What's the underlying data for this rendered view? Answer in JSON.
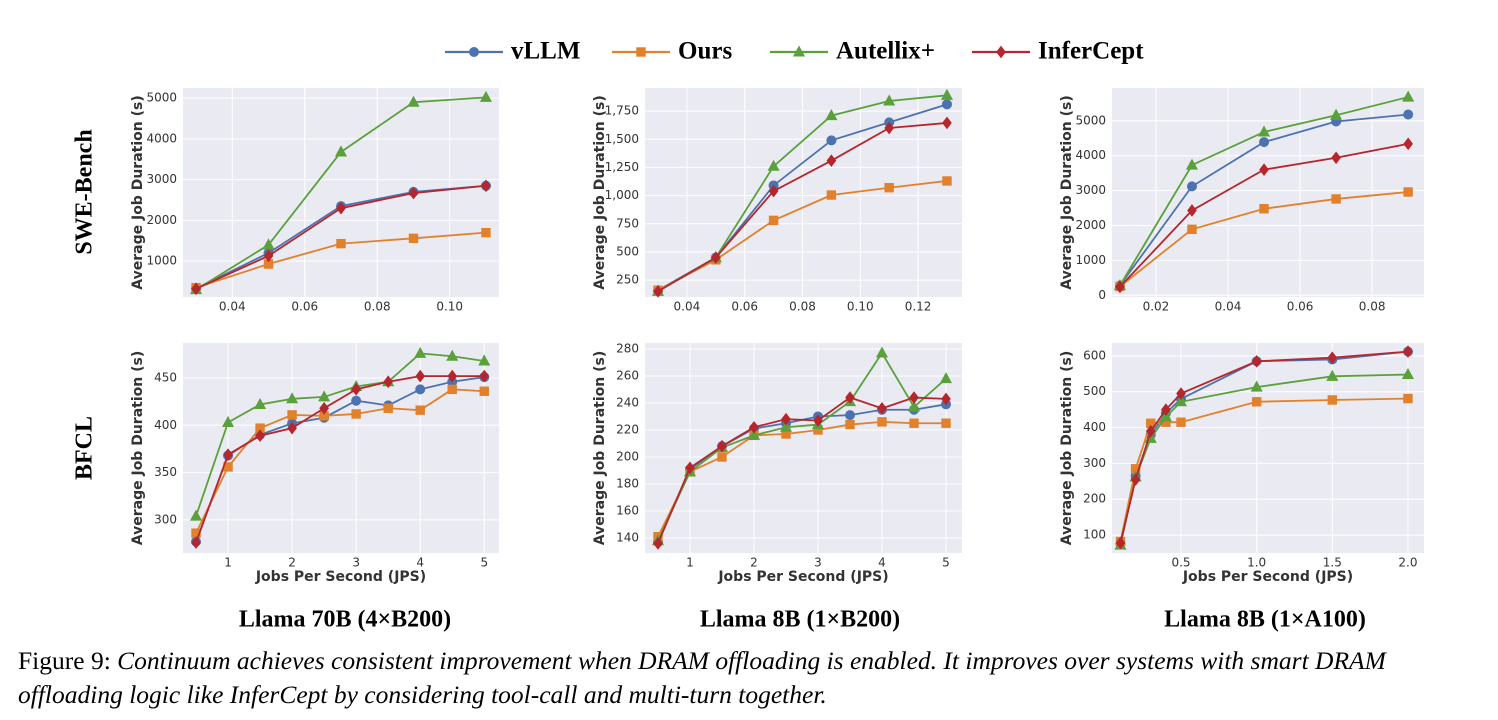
{
  "chart_data": [
    {
      "type": "line",
      "ylabel": "Average Job Duration (s)",
      "x": [
        0.03,
        0.05,
        0.07,
        0.09,
        0.11
      ],
      "xlim": [
        0.0264,
        0.1136
      ],
      "xticks": [
        0.04,
        0.06,
        0.08,
        {
          "value": 0.1,
          "label": "0.10"
        }
      ],
      "ylim": [
        120,
        5250
      ],
      "yticks": [
        1000,
        2000,
        3000,
        4000,
        5000
      ],
      "grid": true,
      "series": [
        {
          "name": "vLLM",
          "color": "#4c72b0",
          "marker": "circle",
          "values": [
            330,
            1200,
            2350,
            2700,
            2850
          ]
        },
        {
          "name": "Ours",
          "color": "#e1812c",
          "marker": "square",
          "values": [
            350,
            930,
            1430,
            1560,
            1700
          ]
        },
        {
          "name": "Autellix+",
          "color": "#5aa13c",
          "marker": "triangle",
          "values": [
            300,
            1400,
            3680,
            4900,
            5020
          ]
        },
        {
          "name": "InferCept",
          "color": "#b5272d",
          "marker": "diamond",
          "values": [
            320,
            1130,
            2300,
            2670,
            2850
          ]
        }
      ]
    },
    {
      "type": "line",
      "ylabel": "Average Job Duration (s)",
      "x": [
        0.03,
        0.05,
        0.07,
        0.09,
        0.11,
        0.13
      ],
      "xlim": [
        0.0255,
        0.1352
      ],
      "xticks": [
        0.04,
        0.06,
        0.08,
        {
          "value": 0.1,
          "label": "0.10"
        },
        0.12
      ],
      "ylim": [
        100,
        1955
      ],
      "yticks": [
        250,
        500,
        750,
        {
          "value": 1000,
          "label": "1,000"
        },
        {
          "value": 1250,
          "label": "1,250"
        },
        {
          "value": 1500,
          "label": "1,500"
        },
        {
          "value": 1750,
          "label": "1,750"
        }
      ],
      "grid": true,
      "series": [
        {
          "name": "vLLM",
          "color": "#4c72b0",
          "marker": "circle",
          "values": [
            160,
            450,
            1090,
            1490,
            1650,
            1810
          ]
        },
        {
          "name": "Ours",
          "color": "#e1812c",
          "marker": "square",
          "values": [
            160,
            430,
            780,
            1005,
            1070,
            1130
          ]
        },
        {
          "name": "Autellix+",
          "color": "#5aa13c",
          "marker": "triangle",
          "values": [
            150,
            450,
            1260,
            1710,
            1840,
            1890
          ]
        },
        {
          "name": "InferCept",
          "color": "#b5272d",
          "marker": "diamond",
          "values": [
            150,
            450,
            1040,
            1310,
            1600,
            1645
          ]
        }
      ]
    },
    {
      "type": "line",
      "ylabel": "Average Job Duration (s)",
      "x": [
        0.01,
        0.03,
        0.05,
        0.07,
        0.09
      ],
      "xlim": [
        0.0078,
        0.0944
      ],
      "xticks": [
        0.02,
        0.04,
        0.06,
        0.08
      ],
      "ylim": [
        -50,
        5940
      ],
      "yticks": [
        0,
        1000,
        2000,
        3000,
        4000,
        5000
      ],
      "grid": true,
      "series": [
        {
          "name": "vLLM",
          "color": "#4c72b0",
          "marker": "circle",
          "values": [
            280,
            3120,
            4390,
            4980,
            5180
          ]
        },
        {
          "name": "Ours",
          "color": "#e1812c",
          "marker": "square",
          "values": [
            250,
            1890,
            2480,
            2760,
            2960
          ]
        },
        {
          "name": "Autellix+",
          "color": "#5aa13c",
          "marker": "triangle",
          "values": [
            280,
            3730,
            4680,
            5160,
            5680
          ]
        },
        {
          "name": "InferCept",
          "color": "#b5272d",
          "marker": "diamond",
          "values": [
            240,
            2430,
            3600,
            3940,
            4340
          ]
        }
      ]
    },
    {
      "type": "line",
      "ylabel": "Average Job Duration (s)",
      "xlabel": "Jobs Per Second (JPS)",
      "x": [
        0.5,
        1,
        1.5,
        2,
        2.5,
        3,
        3.5,
        4,
        4.5,
        5
      ],
      "xlim": [
        0.297,
        5.23
      ],
      "xticks": [
        1,
        2,
        3,
        4,
        5
      ],
      "ylim": [
        265,
        487
      ],
      "yticks": [
        300,
        350,
        400,
        450
      ],
      "grid": true,
      "series": [
        {
          "name": "vLLM",
          "color": "#4c72b0",
          "marker": "circle",
          "values": [
            277,
            368,
            390,
            402,
            408,
            426,
            421,
            438,
            446,
            451
          ]
        },
        {
          "name": "Ours",
          "color": "#e1812c",
          "marker": "square",
          "values": [
            286,
            356,
            397,
            411,
            410,
            412,
            418,
            416,
            438,
            436
          ]
        },
        {
          "name": "Autellix+",
          "color": "#5aa13c",
          "marker": "triangle",
          "values": [
            304,
            403,
            422,
            428,
            430,
            441,
            446,
            476,
            473,
            468
          ]
        },
        {
          "name": "InferCept",
          "color": "#b5272d",
          "marker": "diamond",
          "values": [
            276,
            369,
            389,
            397,
            418,
            438,
            446,
            452,
            452,
            452
          ]
        }
      ]
    },
    {
      "type": "line",
      "ylabel": "Average Job Duration (s)",
      "xlabel": "Jobs Per Second (JPS)",
      "x": [
        0.5,
        1,
        1.5,
        2,
        2.5,
        3,
        3.5,
        4,
        4.5,
        5
      ],
      "xlim": [
        0.297,
        5.25
      ],
      "xticks": [
        1,
        2,
        3,
        4,
        5
      ],
      "ylim": [
        128.9,
        284.4
      ],
      "yticks": [
        140,
        160,
        180,
        200,
        220,
        240,
        260,
        280
      ],
      "grid": true,
      "series": [
        {
          "name": "vLLM",
          "color": "#4c72b0",
          "marker": "circle",
          "values": [
            137,
            191,
            208,
            221,
            225,
            230,
            231,
            235,
            235,
            239
          ]
        },
        {
          "name": "Ours",
          "color": "#e1812c",
          "marker": "square",
          "values": [
            141,
            189,
            200,
            216,
            217,
            220,
            224,
            226,
            225,
            225
          ]
        },
        {
          "name": "Autellix+",
          "color": "#5aa13c",
          "marker": "triangle",
          "values": [
            138,
            189,
            207,
            216,
            222,
            224,
            241,
            277,
            237,
            258
          ]
        },
        {
          "name": "InferCept",
          "color": "#b5272d",
          "marker": "diamond",
          "values": [
            136,
            192,
            208,
            222,
            228,
            227,
            244,
            236,
            244,
            243
          ]
        }
      ]
    },
    {
      "type": "line",
      "ylabel": "Average Job Duration (s)",
      "xlabel": "Jobs Per Second (JPS)",
      "x": [
        0.1,
        0.2,
        0.3,
        0.4,
        0.5,
        1.0,
        1.5,
        2.0
      ],
      "xlim": [
        0.044,
        2.106
      ],
      "xticks": [
        0.5,
        {
          "value": 1,
          "label": "1.0"
        },
        1.5,
        {
          "value": 2,
          "label": "2.0"
        }
      ],
      "ylim": [
        50,
        636
      ],
      "yticks": [
        100,
        200,
        300,
        400,
        500,
        600
      ],
      "grid": true,
      "series": [
        {
          "name": "vLLM",
          "color": "#4c72b0",
          "marker": "circle",
          "values": [
            75,
            265,
            380,
            440,
            480,
            585,
            590,
            612
          ]
        },
        {
          "name": "Ours",
          "color": "#e1812c",
          "marker": "square",
          "values": [
            82,
            285,
            412,
            415,
            415,
            472,
            477,
            481
          ]
        },
        {
          "name": "Autellix+",
          "color": "#5aa13c",
          "marker": "triangle",
          "values": [
            72,
            262,
            370,
            430,
            472,
            513,
            543,
            548
          ]
        },
        {
          "name": "InferCept",
          "color": "#b5272d",
          "marker": "diamond",
          "values": [
            78,
            255,
            390,
            450,
            495,
            585,
            595,
            612
          ]
        }
      ]
    }
  ],
  "row_labels": [
    "SWE-Bench",
    "BFCL"
  ],
  "column_labels": [
    "Llama 70B (4×B200)",
    "Llama 8B (1×B200)",
    "Llama 8B (1×A100)"
  ],
  "caption": {
    "label": "Figure 9:",
    "text": "Continuum achieves consistent improvement when DRAM offloading is enabled. It improves over systems with smart DRAM offloading logic like InferCept by considering tool-call and multi-turn together."
  }
}
